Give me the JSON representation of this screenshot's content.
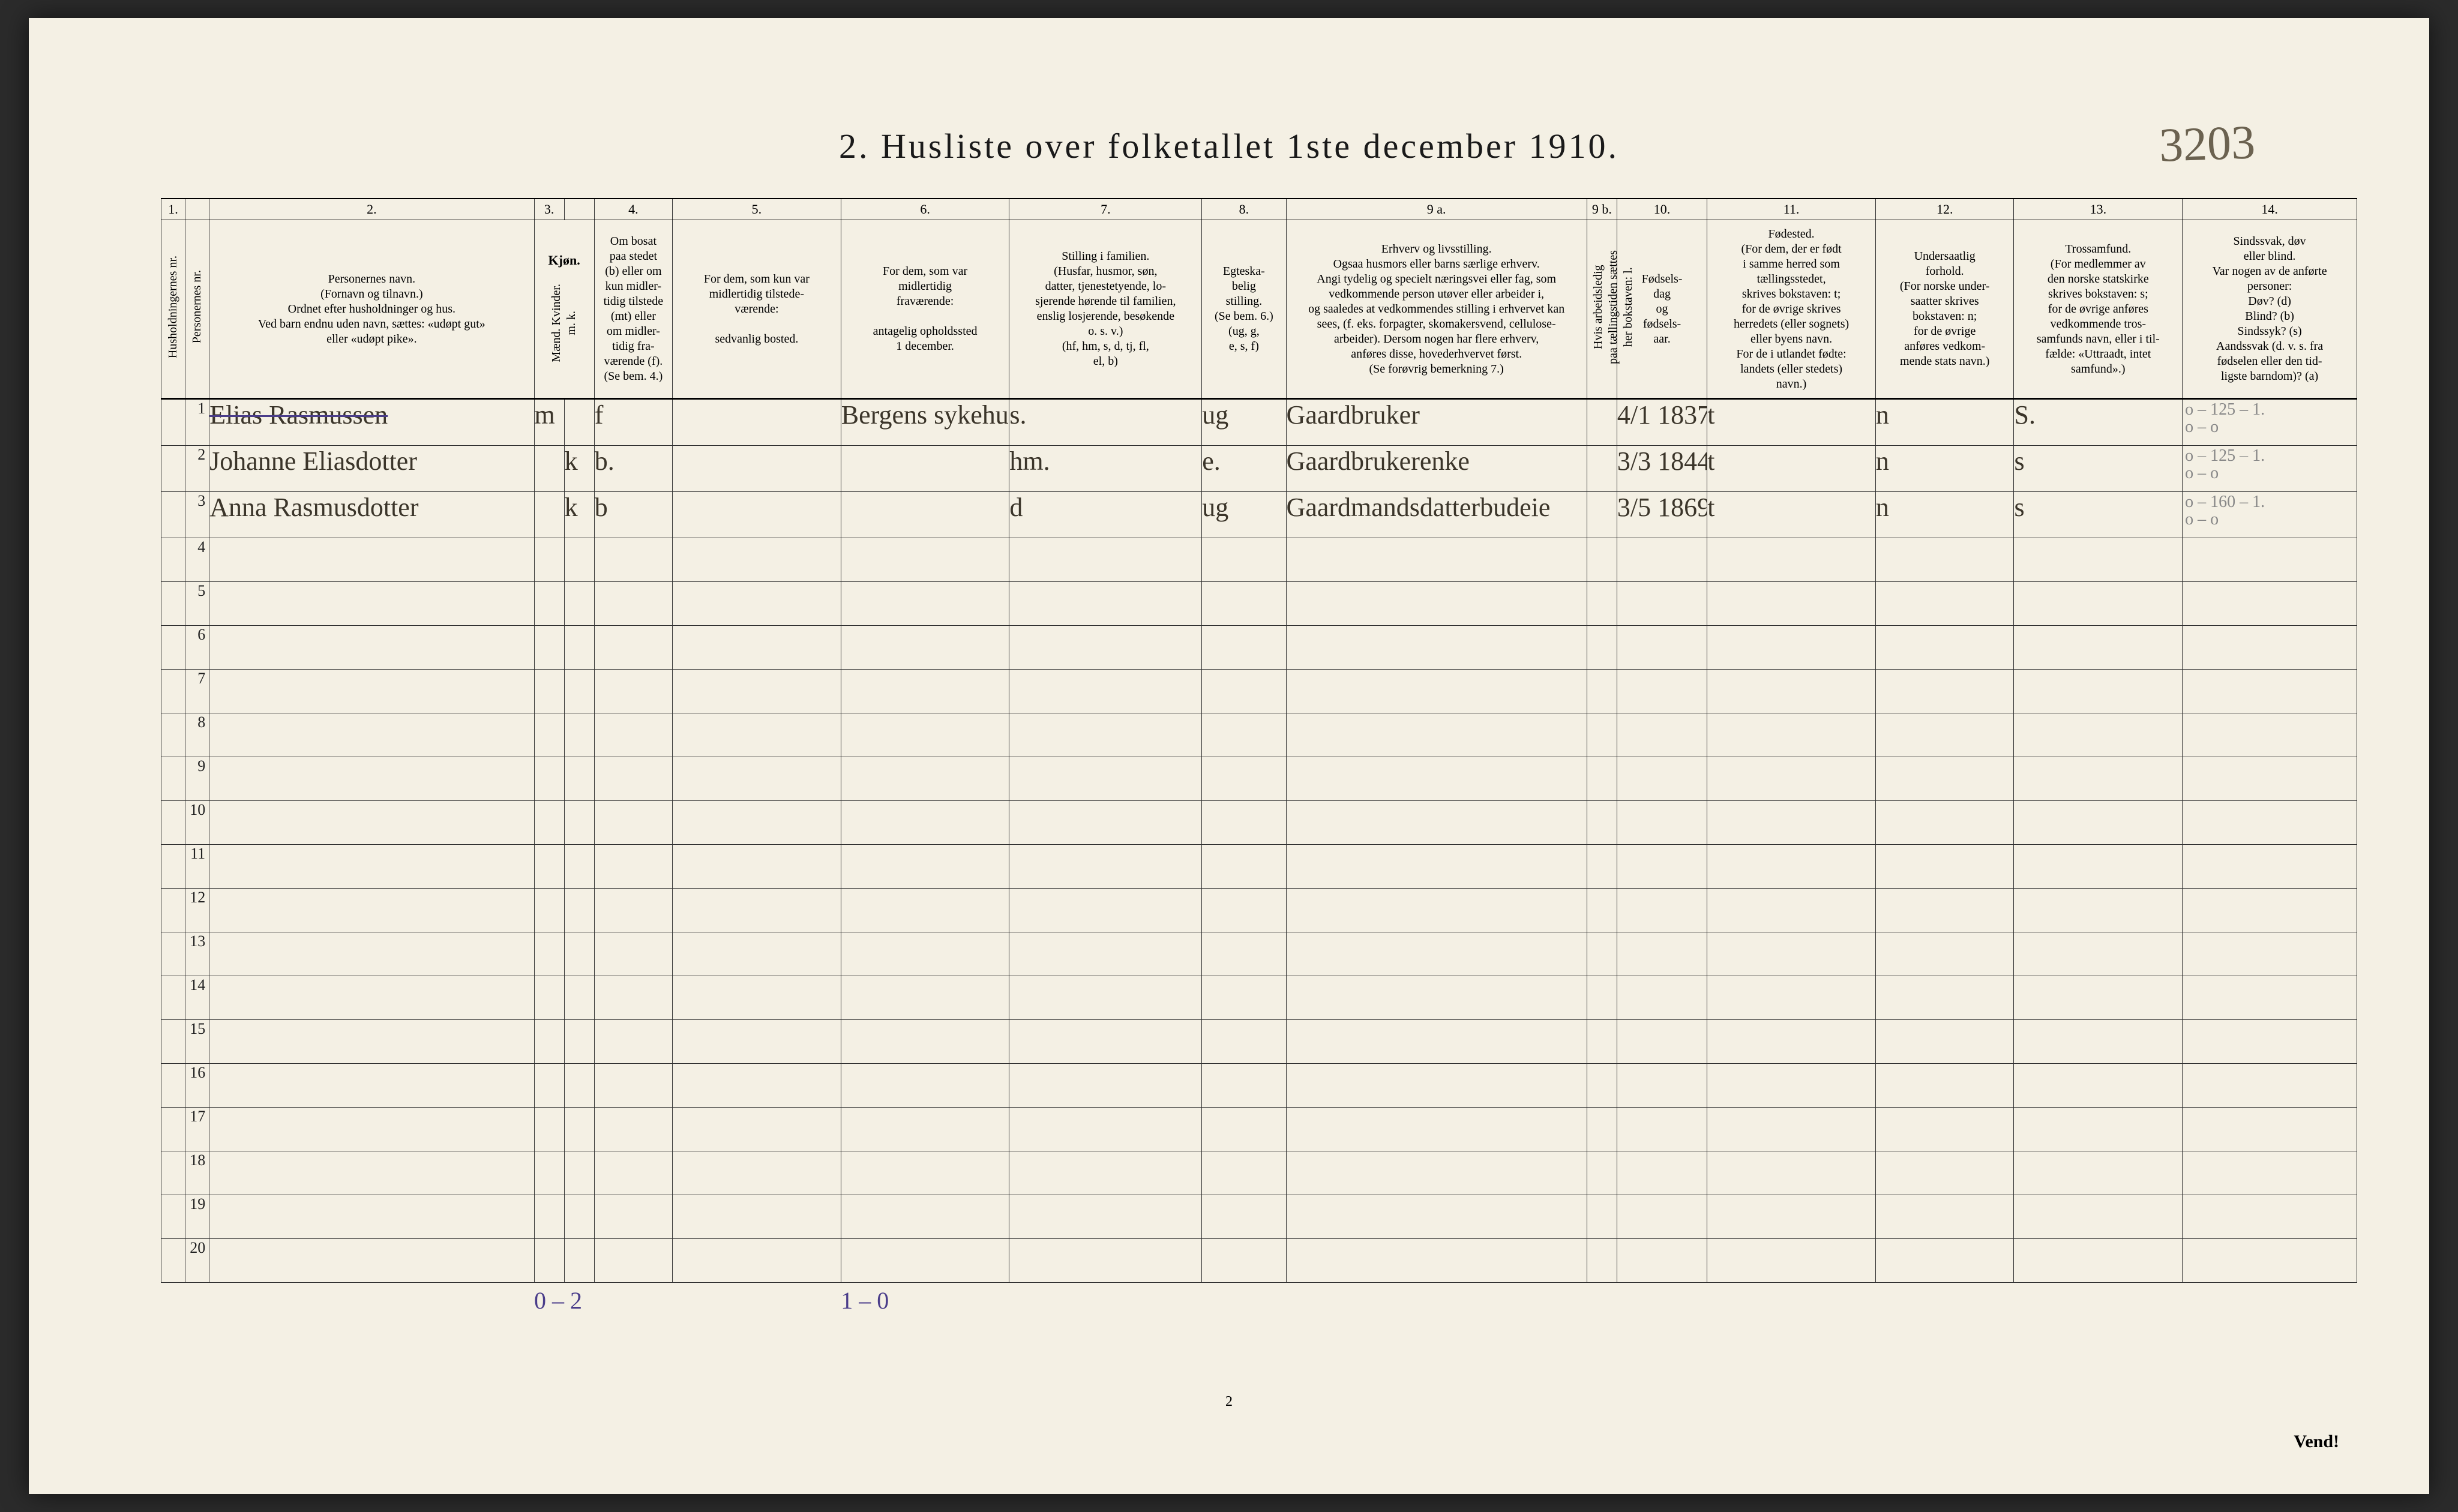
{
  "title": "2.  Husliste over folketallet 1ste december 1910.",
  "top_right_annotation": "3203",
  "page_number": "2",
  "turn_over": "Vend!",
  "col_numbers": [
    "1.",
    "",
    "2.",
    "3.",
    "",
    "4.",
    "5.",
    "6.",
    "7.",
    "8.",
    "9 a.",
    "9 b.",
    "10.",
    "11.",
    "12.",
    "13.",
    "14."
  ],
  "headers": {
    "husholdning_nr": "Husholdningernes nr.",
    "person_nr": "Personernes nr.",
    "navn": "Personernes navn.\n(Fornavn og tilnavn.)\nOrdnet efter husholdninger og hus.\nVed barn endnu uden navn, sættes: «udøpt gut»\neller «udøpt pike».",
    "kjon": "Kjøn.",
    "kjon_sub": "Mænd.  Kvinder.\nm.   k.",
    "bosat": "Om bosat\npaa stedet\n(b) eller om\nkun midler-\ntidig tilstede\n(mt) eller\nom midler-\ntidig fra-\nværende (f).\n(Se bem. 4.)",
    "tilstede": "For dem, som kun var\nmidlertidig tilstede-\nværende:\n\nsedvanlig bosted.",
    "fravar": "For dem, som var\nmidlertidig\nfraværende:\n\nantagelig opholdssted\n1 december.",
    "stilling_fam": "Stilling i familien.\n(Husfar, husmor, søn,\ndatter, tjenestetyende, lo-\nsjerende hørende til familien,\nenslig losjerende, besøkende\no. s. v.)\n(hf, hm, s, d, tj, fl,\nel, b)",
    "egte": "Egteska-\nbelig\nstilling.\n(Se bem. 6.)\n(ug, g,\ne, s, f)",
    "erhverv": "Erhverv og livsstilling.\nOgsaa husmors eller barns særlige erhverv.\nAngi tydelig og specielt næringsvei eller fag, som\nvedkommende person utøver eller arbeider i,\nog saaledes at vedkommendes stilling i erhvervet kan\nsees, (f. eks. forpagter, skomakersvend, cellulose-\narbeider). Dersom nogen har flere erhverv,\nanføres disse, hovederhvervet først.\n(Se forøvrig bemerkning 7.)",
    "arbeidsledig": "Hvis arbeidsledig\npaa tællingstiden sættes\nher bokstaven: l.",
    "fodsel": "Fødsels-\ndag\nog\nfødsels-\naar.",
    "fodested": "Fødested.\n(For dem, der er født\ni samme herred som\ntællingsstedet,\nskrives bokstaven: t;\nfor de øvrige skrives\nherredets (eller sognets)\neller byens navn.\nFor de i utlandet fødte:\nlandets (eller stedets)\nnavn.)",
    "undersaat": "Undersaatlig\nforhold.\n(For norske under-\nsaatter skrives\nbokstaven: n;\nfor de øvrige\nanføres vedkom-\nmende stats navn.)",
    "trossamfund": "Trossamfund.\n(For medlemmer av\nden norske statskirke\nskrives bokstaven: s;\nfor de øvrige anføres\nvedkommende tros-\nsamfunds navn, eller i til-\nfælde: «Uttraadt, intet\nsamfund».)",
    "sindssvak": "Sindssvak, døv\neller blind.\nVar nogen av de anførte\npersoner:\nDøv?        (d)\nBlind?      (b)\nSindssyk?   (s)\nAandssvak (d. v. s. fra\nfødselen eller den tid-\nligste barndom)?  (a)"
  },
  "rows": [
    {
      "pnr": "1",
      "crossed": true,
      "name": "Elias Rasmussen",
      "sex_m": "m",
      "sex_k": "",
      "bosat": "f",
      "tilstede": "",
      "fravar": "Bergens sykehus",
      "stilling": "s.",
      "egte": "ug",
      "erhverv": "Gaardbruker",
      "fdato": "4/1 1837",
      "fsted": "t",
      "under": "n",
      "tros": "S.",
      "margin": "o – 125 – 1.\no – o"
    },
    {
      "pnr": "2",
      "crossed": false,
      "name": "Johanne Eliasdotter",
      "sex_m": "",
      "sex_k": "k",
      "bosat": "b.",
      "tilstede": "",
      "fravar": "",
      "stilling": "hm.",
      "egte": "e.",
      "erhverv": "Gaardbrukerenke",
      "fdato": "3/3 1844",
      "fsted": "t",
      "under": "n",
      "tros": "s",
      "margin": "o – 125 – 1.\no – o"
    },
    {
      "pnr": "3",
      "crossed": false,
      "name": "Anna Rasmusdotter",
      "sex_m": "",
      "sex_k": "k",
      "bosat": "b",
      "tilstede": "",
      "fravar": "",
      "stilling": "d",
      "egte": "ug",
      "erhverv": "Gaardmandsdatterbudeie",
      "fdato": "3/5 1869",
      "fsted": "t",
      "under": "n",
      "tros": "s",
      "margin": "o – 160 – 1.\no – o"
    }
  ],
  "empty_row_numbers": [
    "4",
    "5",
    "6",
    "7",
    "8",
    "9",
    "10",
    "11",
    "12",
    "13",
    "14",
    "15",
    "16",
    "17",
    "18",
    "19",
    "20"
  ],
  "footer_annotations": {
    "under_col4": "0 – 2",
    "under_col6": "1 – 0"
  }
}
